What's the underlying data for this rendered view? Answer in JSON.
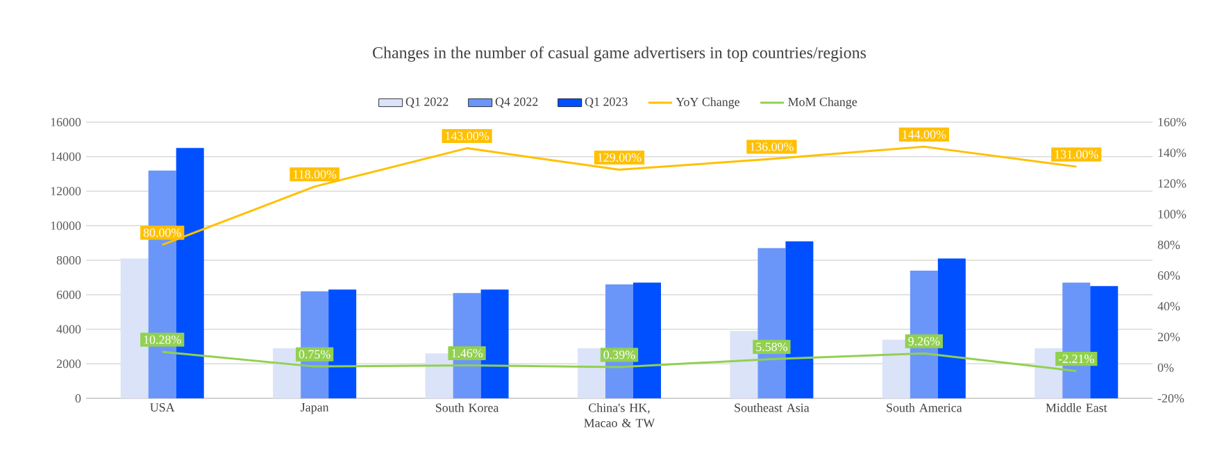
{
  "chart_data": {
    "type": "bar",
    "title": "Changes in the number of casual game advertisers in top countries/regions",
    "categories": [
      "USA",
      "Japan",
      "South Korea",
      "China's HK, Macao & TW",
      "Southeast Asia",
      "South America",
      "Middle East"
    ],
    "series": [
      {
        "name": "Q1 2022",
        "color": "#dae3f8",
        "values": [
          8100,
          2900,
          2600,
          2900,
          3900,
          3400,
          2900
        ]
      },
      {
        "name": "Q4 2022",
        "color": "#6b96f9",
        "values": [
          13200,
          6200,
          6100,
          6600,
          8700,
          7400,
          6700
        ]
      },
      {
        "name": "Q1 2023",
        "color": "#0050ff",
        "values": [
          14500,
          6300,
          6300,
          6700,
          9100,
          8100,
          6500
        ]
      },
      {
        "name": "YoY Change",
        "type": "line",
        "axis": "y2",
        "color": "#ffc000",
        "values": [
          80,
          118,
          143,
          129,
          136,
          144,
          131
        ],
        "value_labels": [
          "80.00%",
          "118.00%",
          "143.00%",
          "129.00%",
          "136.00%",
          "144.00%",
          "131.00%"
        ]
      },
      {
        "name": "MoM Change",
        "type": "line",
        "axis": "y2",
        "color": "#92d050",
        "values": [
          10.28,
          0.75,
          1.46,
          0.39,
          5.58,
          9.26,
          -2.21
        ],
        "value_labels": [
          "10.28%",
          "0.75%",
          "1.46%",
          "0.39%",
          "5.58%",
          "9.26%",
          "-2.21%"
        ]
      }
    ],
    "ylim": [
      0,
      16000
    ],
    "yticks": [
      0,
      2000,
      4000,
      6000,
      8000,
      10000,
      12000,
      14000,
      16000
    ],
    "y2lim": [
      -20,
      160
    ],
    "y2ticks": [
      {
        "value": -20,
        "label": "-20%"
      },
      {
        "value": 0,
        "label": "0%"
      },
      {
        "value": 20,
        "label": "20%"
      },
      {
        "value": 40,
        "label": "40%"
      },
      {
        "value": 60,
        "label": "60%"
      },
      {
        "value": 80,
        "label": "80%"
      },
      {
        "value": 100,
        "label": "100%"
      },
      {
        "value": 120,
        "label": "120%"
      },
      {
        "value": 140,
        "label": "140%"
      },
      {
        "value": 160,
        "label": "160%"
      }
    ],
    "grid": "y",
    "legend": "top",
    "marker": "none",
    "line_style": "solid"
  }
}
